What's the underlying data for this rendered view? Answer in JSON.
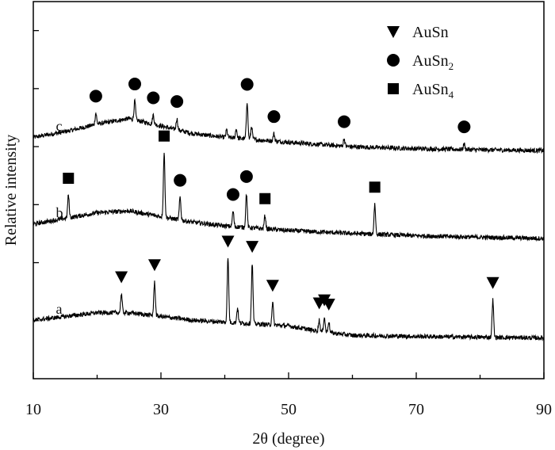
{
  "chart_data": {
    "type": "line",
    "title": "",
    "xlabel": "2θ (degree)",
    "ylabel": "Relative intensity",
    "xlim": [
      10,
      90
    ],
    "ylim": [
      0,
      1
    ],
    "x_ticks": [
      10,
      30,
      50,
      70,
      90
    ],
    "y_ticks_labeled": false,
    "grid": false,
    "legend": {
      "placement": "top-right",
      "entries": [
        {
          "marker": "triangle-down",
          "label": "AuSn",
          "sub": ""
        },
        {
          "marker": "circle",
          "label": "AuSn",
          "sub": "2"
        },
        {
          "marker": "square",
          "label": "AuSn",
          "sub": "4"
        }
      ]
    },
    "series": [
      {
        "name": "c",
        "baseline": [
          [
            10,
            0.64
          ],
          [
            15,
            0.655
          ],
          [
            20,
            0.675
          ],
          [
            25,
            0.69
          ],
          [
            30,
            0.67
          ],
          [
            35,
            0.65
          ],
          [
            40,
            0.64
          ],
          [
            50,
            0.627
          ],
          [
            60,
            0.615
          ],
          [
            70,
            0.61
          ],
          [
            80,
            0.607
          ],
          [
            90,
            0.605
          ]
        ],
        "peaks": [
          [
            19.8,
            0.03
          ],
          [
            25.9,
            0.05
          ],
          [
            28.8,
            0.025
          ],
          [
            32.5,
            0.03
          ],
          [
            40.3,
            0.02
          ],
          [
            41.8,
            0.025
          ],
          [
            43.5,
            0.1
          ],
          [
            44.2,
            0.035
          ],
          [
            47.7,
            0.02
          ],
          [
            58.7,
            0.02
          ],
          [
            77.5,
            0.015
          ]
        ],
        "markers": [
          {
            "x": 19.8,
            "shape": "circle"
          },
          {
            "x": 25.9,
            "shape": "circle"
          },
          {
            "x": 28.8,
            "shape": "circle"
          },
          {
            "x": 32.5,
            "shape": "circle"
          },
          {
            "x": 43.5,
            "shape": "circle"
          },
          {
            "x": 47.7,
            "shape": "circle"
          },
          {
            "x": 58.7,
            "shape": "circle"
          },
          {
            "x": 77.5,
            "shape": "circle"
          }
        ]
      },
      {
        "name": "b",
        "baseline": [
          [
            10,
            0.41
          ],
          [
            15,
            0.425
          ],
          [
            20,
            0.44
          ],
          [
            25,
            0.445
          ],
          [
            30,
            0.43
          ],
          [
            35,
            0.415
          ],
          [
            40,
            0.405
          ],
          [
            50,
            0.393
          ],
          [
            60,
            0.385
          ],
          [
            70,
            0.379
          ],
          [
            80,
            0.375
          ],
          [
            90,
            0.372
          ]
        ],
        "peaks": [
          [
            15.5,
            0.06
          ],
          [
            30.5,
            0.17
          ],
          [
            33.0,
            0.06
          ],
          [
            41.3,
            0.04
          ],
          [
            43.4,
            0.09
          ],
          [
            46.3,
            0.035
          ],
          [
            63.5,
            0.08
          ]
        ],
        "markers": [
          {
            "x": 15.5,
            "shape": "square"
          },
          {
            "x": 30.5,
            "shape": "square"
          },
          {
            "x": 33.0,
            "shape": "circle"
          },
          {
            "x": 41.3,
            "shape": "circle"
          },
          {
            "x": 43.4,
            "shape": "circle"
          },
          {
            "x": 46.3,
            "shape": "square"
          },
          {
            "x": 63.5,
            "shape": "square"
          }
        ]
      },
      {
        "name": "a",
        "baseline": [
          [
            10,
            0.155
          ],
          [
            15,
            0.165
          ],
          [
            20,
            0.175
          ],
          [
            25,
            0.175
          ],
          [
            30,
            0.165
          ],
          [
            35,
            0.155
          ],
          [
            40,
            0.15
          ],
          [
            50,
            0.14
          ],
          [
            55,
            0.125
          ],
          [
            60,
            0.115
          ],
          [
            70,
            0.112
          ],
          [
            80,
            0.11
          ],
          [
            90,
            0.108
          ]
        ],
        "peaks": [
          [
            23.8,
            0.05
          ],
          [
            29.0,
            0.09
          ],
          [
            40.5,
            0.17
          ],
          [
            42.0,
            0.04
          ],
          [
            44.3,
            0.16
          ],
          [
            47.5,
            0.06
          ],
          [
            54.8,
            0.03
          ],
          [
            55.6,
            0.04
          ],
          [
            56.3,
            0.03
          ],
          [
            82.0,
            0.1
          ]
        ],
        "markers": [
          {
            "x": 23.8,
            "shape": "triangle"
          },
          {
            "x": 29.0,
            "shape": "triangle"
          },
          {
            "x": 40.5,
            "shape": "triangle"
          },
          {
            "x": 44.3,
            "shape": "triangle"
          },
          {
            "x": 47.5,
            "shape": "triangle"
          },
          {
            "x": 54.8,
            "shape": "triangle"
          },
          {
            "x": 55.6,
            "shape": "triangle"
          },
          {
            "x": 56.3,
            "shape": "triangle"
          },
          {
            "x": 82.0,
            "shape": "triangle"
          }
        ]
      }
    ]
  }
}
